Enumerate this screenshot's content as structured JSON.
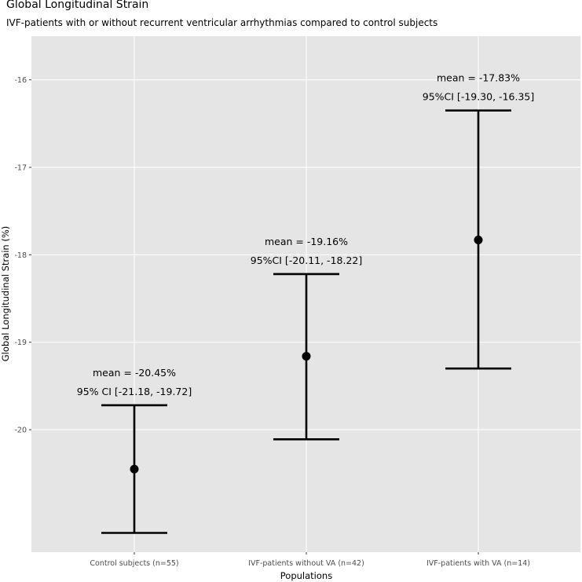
{
  "chart_data": {
    "type": "errorbar",
    "title": "Global Longitudinal Strain",
    "subtitle": "IVF-patients with or without recurrent ventricular arrhythmias compared to control subjects",
    "xlabel": "Populations",
    "ylabel": "Global Longitudinal Strain (%)",
    "ylim": [
      -21.4,
      -15.5
    ],
    "yticks": [
      -16,
      -17,
      -18,
      -19,
      -20
    ],
    "ytick_labels": [
      "-16",
      "-17",
      "-18",
      "-19",
      "-20"
    ],
    "grid": true,
    "categories": [
      "Control subjects (n=55)",
      "IVF-patients without VA (n=42)",
      "IVF-patients with VA (n=14)"
    ],
    "means": [
      -20.45,
      -19.16,
      -17.83
    ],
    "ci_lower": [
      -21.18,
      -20.11,
      -19.3
    ],
    "ci_upper": [
      -19.72,
      -18.22,
      -16.35
    ],
    "annotations": [
      {
        "mean_text": "mean = -20.45%",
        "ci_text": "95% CI [-21.18, -19.72]"
      },
      {
        "mean_text": "mean = -19.16%",
        "ci_text": "95%CI [-20.11, -18.22]"
      },
      {
        "mean_text": "mean = -17.83%",
        "ci_text": "95%CI [-19.30, -16.35]"
      }
    ],
    "colors": {
      "panel_background": "#e5e5e5",
      "grid": "#ffffff",
      "marks": "#000000",
      "tick_text": "#4d4d4d"
    }
  }
}
